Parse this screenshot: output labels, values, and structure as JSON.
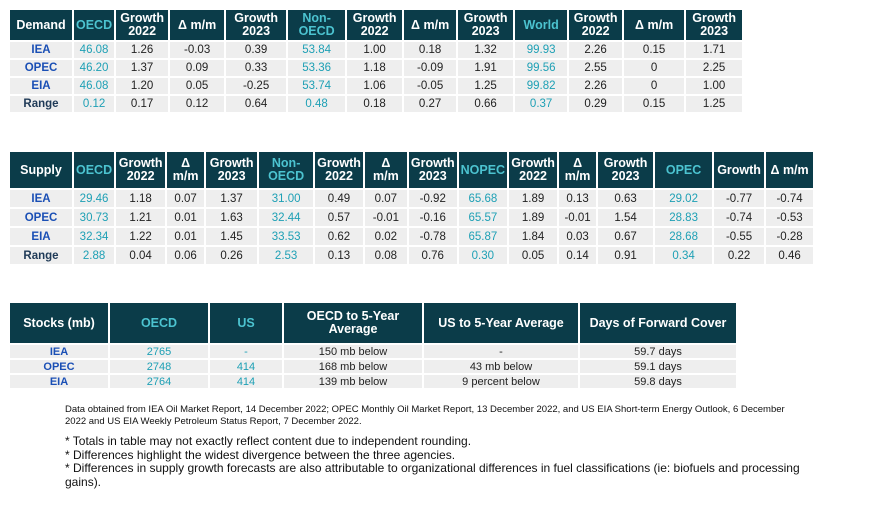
{
  "demand_table": {
    "headers": [
      "Demand",
      "OECD",
      "Growth\n2022",
      "Δ m/m",
      "Growth\n2023",
      "Non-\nOECD",
      "Growth\n2022",
      "Δ m/m",
      "Growth\n2023",
      "World",
      "Growth\n2022",
      "Δ m/m",
      "Growth\n2023"
    ],
    "rows": [
      [
        "IEA",
        "46.08",
        "1.26",
        "-0.03",
        "0.39",
        "53.84",
        "1.00",
        "0.18",
        "1.32",
        "99.93",
        "2.26",
        "0.15",
        "1.71"
      ],
      [
        "OPEC",
        "46.20",
        "1.37",
        "0.09",
        "0.33",
        "53.36",
        "1.18",
        "-0.09",
        "1.91",
        "99.56",
        "2.55",
        "0",
        "2.25"
      ],
      [
        "EIA",
        "46.08",
        "1.20",
        "0.05",
        "-0.25",
        "53.74",
        "1.06",
        "-0.05",
        "1.25",
        "99.82",
        "2.26",
        "0",
        "1.00"
      ],
      [
        "Range",
        "0.12",
        "0.17",
        "0.12",
        "0.64",
        "0.48",
        "0.18",
        "0.27",
        "0.66",
        "0.37",
        "0.29",
        "0.15",
        "1.25"
      ]
    ]
  },
  "supply_table": {
    "headers": [
      "Supply",
      "OECD",
      "Growth\n2022",
      "Δ\nm/m",
      "Growth\n2023",
      "Non-\nOECD",
      "Growth\n2022",
      "Δ\nm/m",
      "Growth\n2023",
      "NOPEC",
      "Growth\n2022",
      "Δ\nm/m",
      "Growth\n2023",
      "OPEC",
      "Growth",
      "Δ m/m"
    ],
    "rows": [
      [
        "IEA",
        "29.46",
        "1.18",
        "0.07",
        "1.37",
        "31.00",
        "0.49",
        "0.07",
        "-0.92",
        "65.68",
        "1.89",
        "0.13",
        "0.63",
        "29.02",
        "-0.77",
        "-0.74"
      ],
      [
        "OPEC",
        "30.73",
        "1.21",
        "0.01",
        "1.63",
        "32.44",
        "0.57",
        "-0.01",
        "-0.16",
        "65.57",
        "1.89",
        "-0.01",
        "1.54",
        "28.83",
        "-0.74",
        "-0.53"
      ],
      [
        "EIA",
        "32.34",
        "1.22",
        "0.01",
        "1.45",
        "33.53",
        "0.62",
        "0.02",
        "-0.78",
        "65.87",
        "1.84",
        "0.03",
        "0.67",
        "28.68",
        "-0.55",
        "-0.28"
      ],
      [
        "Range",
        "2.88",
        "0.04",
        "0.06",
        "0.26",
        "2.53",
        "0.13",
        "0.08",
        "0.76",
        "0.30",
        "0.05",
        "0.14",
        "0.91",
        "0.34",
        "0.22",
        "0.46"
      ]
    ]
  },
  "stocks_table": {
    "headers": [
      "Stocks (mb)",
      "OECD",
      "US",
      "OECD to 5-Year\nAverage",
      "US to 5-Year Average",
      "Days of Forward Cover"
    ],
    "rows": [
      [
        "IEA",
        "2765",
        "-",
        "150 mb below",
        "-",
        "59.7 days"
      ],
      [
        "OPEC",
        "2748",
        "414",
        "168 mb below",
        "43 mb below",
        "59.1 days"
      ],
      [
        "EIA",
        "2764",
        "414",
        "139 mb below",
        "9 percent below",
        "59.8 days"
      ]
    ]
  },
  "source_note": "Data obtained from IEA Oil Market Report, 14 December 2022; OPEC Monthly Oil Market Report, 13 December 2022, and US EIA Short-term Energy Outlook, 6 December 2022 and US EIA Weekly Petroleum Status Report, 7 December 2022.",
  "bullets": [
    "* Totals in table may not exactly reflect content due to independent rounding.",
    "* Differences highlight the widest divergence between the three agencies.",
    "* Differences in supply growth forecasts are also attributable to organizational differences in fuel classifications (ie: biofuels and processing gains)."
  ],
  "colors": {
    "header_bg": "#0b3c49",
    "header_highlight": "#4cc3d0",
    "cell_bg": "#eeeeee",
    "label_blue": "#1a4fb5",
    "value_teal": "#1ea0b5"
  }
}
